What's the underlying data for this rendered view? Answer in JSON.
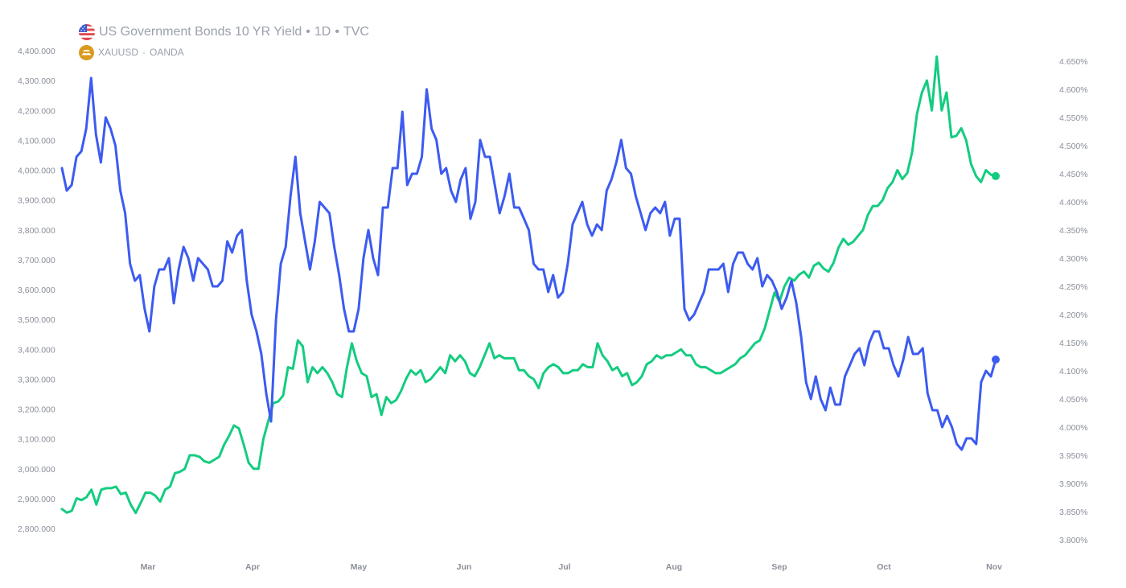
{
  "legend": {
    "primary": {
      "name": "US Government Bonds 10 YR Yield",
      "interval": "1D",
      "source": "TVC",
      "icon": "us-flag-icon"
    },
    "secondary": {
      "name": "XAUUSD",
      "source": "OANDA",
      "icon": "gold-bars-icon"
    }
  },
  "colors": {
    "yield_line": "#3d5bf0",
    "gold_line": "#14cc80",
    "tick_text": "#8a8f99",
    "legend_text": "#9aa0ad"
  },
  "chart_data": {
    "type": "line",
    "x_range": [
      "2025-02-03",
      "2025-11-03"
    ],
    "month_labels": [
      "Mar",
      "Apr",
      "May",
      "Jun",
      "Jul",
      "Aug",
      "Sep",
      "Oct",
      "Nov"
    ],
    "left_axis": {
      "series": "XAUUSD",
      "ticks": [
        "4,400.000",
        "4,300.000",
        "4,200.000",
        "4,100.000",
        "4,000.000",
        "3,900.000",
        "3,800.000",
        "3,700.000",
        "3,600.000",
        "3,500.000",
        "3,400.000",
        "3,300.000",
        "3,200.000",
        "3,100.000",
        "3,000.000",
        "2,900.000",
        "2,800.000"
      ],
      "range": [
        2800,
        4400
      ]
    },
    "right_axis": {
      "series": "US Government Bonds 10 YR Yield",
      "ticks": [
        "4.650%",
        "4.600%",
        "4.550%",
        "4.500%",
        "4.450%",
        "4.400%",
        "4.350%",
        "4.300%",
        "4.250%",
        "4.200%",
        "4.150%",
        "4.100%",
        "4.050%",
        "4.000%",
        "3.950%",
        "3.900%",
        "3.850%",
        "3.800%"
      ],
      "range": [
        3.8,
        4.65
      ]
    },
    "series": [
      {
        "name": "US Government Bonds 10 YR Yield",
        "axis": "right",
        "color": "#3d5bf0",
        "values": [
          4.46,
          4.42,
          4.43,
          4.48,
          4.49,
          4.53,
          4.62,
          4.52,
          4.47,
          4.55,
          4.53,
          4.5,
          4.42,
          4.38,
          4.29,
          4.26,
          4.27,
          4.21,
          4.17,
          4.25,
          4.28,
          4.28,
          4.3,
          4.22,
          4.28,
          4.32,
          4.3,
          4.26,
          4.3,
          4.29,
          4.28,
          4.25,
          4.25,
          4.26,
          4.33,
          4.31,
          4.34,
          4.35,
          4.26,
          4.2,
          4.17,
          4.13,
          4.06,
          4.01,
          4.19,
          4.29,
          4.32,
          4.41,
          4.48,
          4.38,
          4.33,
          4.28,
          4.33,
          4.4,
          4.39,
          4.38,
          4.32,
          4.27,
          4.21,
          4.17,
          4.17,
          4.21,
          4.3,
          4.35,
          4.3,
          4.27,
          4.39,
          4.39,
          4.46,
          4.46,
          4.56,
          4.43,
          4.45,
          4.45,
          4.48,
          4.6,
          4.53,
          4.51,
          4.45,
          4.46,
          4.42,
          4.4,
          4.44,
          4.46,
          4.37,
          4.4,
          4.51,
          4.48,
          4.48,
          4.43,
          4.38,
          4.41,
          4.45,
          4.39,
          4.39,
          4.37,
          4.35,
          4.29,
          4.28,
          4.28,
          4.24,
          4.27,
          4.23,
          4.24,
          4.29,
          4.36,
          4.38,
          4.4,
          4.36,
          4.34,
          4.36,
          4.35,
          4.42,
          4.44,
          4.47,
          4.51,
          4.46,
          4.45,
          4.41,
          4.38,
          4.35,
          4.38,
          4.39,
          4.38,
          4.4,
          4.34,
          4.37,
          4.37,
          4.21,
          4.19,
          4.2,
          4.22,
          4.24,
          4.28,
          4.28,
          4.28,
          4.29,
          4.24,
          4.29,
          4.31,
          4.31,
          4.29,
          4.28,
          4.3,
          4.25,
          4.27,
          4.26,
          4.24,
          4.21,
          4.23,
          4.26,
          4.22,
          4.16,
          4.08,
          4.05,
          4.09,
          4.05,
          4.03,
          4.07,
          4.04,
          4.04,
          4.09,
          4.11,
          4.13,
          4.14,
          4.11,
          4.15,
          4.17,
          4.17,
          4.14,
          4.14,
          4.11,
          4.09,
          4.12,
          4.16,
          4.13,
          4.13,
          4.14,
          4.06,
          4.03,
          4.03,
          4.0,
          4.02,
          4.0,
          3.97,
          3.96,
          3.98,
          3.98,
          3.97,
          4.08,
          4.1,
          4.09,
          4.12
        ]
      },
      {
        "name": "XAUUSD",
        "axis": "left",
        "color": "#14cc80",
        "values": [
          2865,
          2853,
          2859,
          2901,
          2895,
          2905,
          2930,
          2880,
          2930,
          2935,
          2935,
          2940,
          2915,
          2920,
          2880,
          2852,
          2885,
          2920,
          2920,
          2910,
          2890,
          2930,
          2940,
          2985,
          2990,
          3000,
          3045,
          3045,
          3040,
          3025,
          3020,
          3030,
          3040,
          3080,
          3110,
          3145,
          3135,
          3080,
          3020,
          3000,
          3000,
          3100,
          3160,
          3220,
          3225,
          3245,
          3340,
          3335,
          3430,
          3410,
          3290,
          3340,
          3320,
          3340,
          3320,
          3290,
          3250,
          3240,
          3340,
          3420,
          3360,
          3320,
          3310,
          3240,
          3250,
          3180,
          3240,
          3220,
          3230,
          3260,
          3300,
          3330,
          3315,
          3330,
          3290,
          3300,
          3320,
          3340,
          3320,
          3380,
          3360,
          3380,
          3360,
          3320,
          3310,
          3340,
          3380,
          3420,
          3370,
          3380,
          3370,
          3370,
          3370,
          3330,
          3330,
          3310,
          3300,
          3270,
          3320,
          3340,
          3350,
          3340,
          3320,
          3320,
          3330,
          3330,
          3350,
          3340,
          3340,
          3420,
          3380,
          3360,
          3330,
          3340,
          3310,
          3320,
          3280,
          3290,
          3310,
          3350,
          3360,
          3380,
          3370,
          3380,
          3380,
          3390,
          3400,
          3380,
          3380,
          3350,
          3340,
          3340,
          3330,
          3320,
          3320,
          3330,
          3340,
          3350,
          3370,
          3380,
          3400,
          3420,
          3430,
          3470,
          3530,
          3590,
          3560,
          3610,
          3640,
          3630,
          3650,
          3660,
          3640,
          3680,
          3690,
          3670,
          3660,
          3690,
          3740,
          3770,
          3750,
          3760,
          3780,
          3800,
          3850,
          3880,
          3880,
          3900,
          3940,
          3960,
          4000,
          3970,
          3990,
          4060,
          4190,
          4260,
          4300,
          4200,
          4380,
          4200,
          4260,
          4110,
          4115,
          4140,
          4100,
          4020,
          3980,
          3960,
          4000,
          3985,
          3980
        ]
      }
    ]
  }
}
